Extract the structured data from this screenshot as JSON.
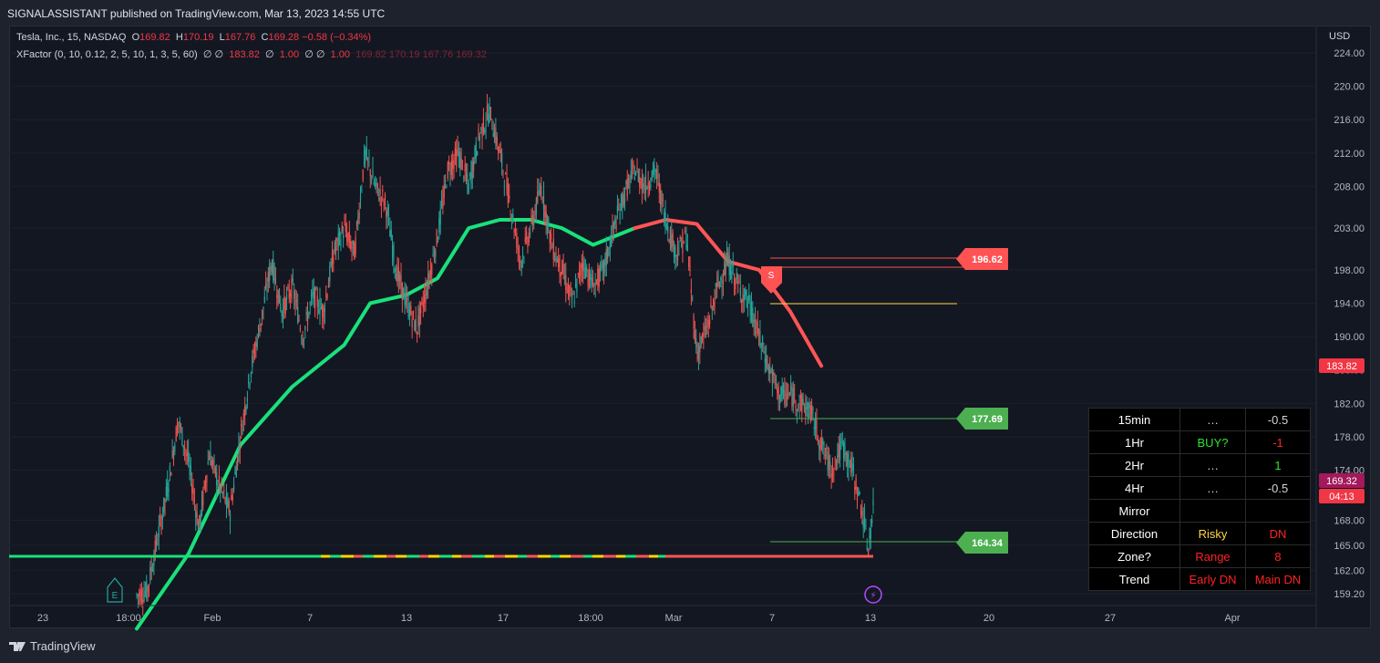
{
  "header": {
    "publisher_line": "SIGNALASSISTANT published on TradingView.com, Mar 13, 2023 14:55 UTC"
  },
  "legend": {
    "symbol": "Tesla, Inc., 15, NASDAQ",
    "open_label": "O",
    "open": "169.82",
    "high_label": "H",
    "high": "170.19",
    "low_label": "L",
    "low": "167.76",
    "close_label": "C",
    "close": "169.28",
    "change": "−0.58 (−0.34%)",
    "indicator": "XFactor (0, 10, 0.12, 2, 5, 10, 1, 3, 5, 60)",
    "ind_values_a": "∅ ∅",
    "ind_value1": "183.82",
    "ind_values_b": "∅",
    "ind_value2": "1.00",
    "ind_values_c": "∅ ∅",
    "ind_value3": "1.00",
    "ind_ohlc": "169.82 170.19 167.76 169.32"
  },
  "currency": "USD",
  "footer": {
    "brand": "TradingView"
  },
  "colors": {
    "background": "#131722",
    "up": "#26a69a",
    "down": "#ef5350",
    "ma_up": "#19e17b",
    "ma_down": "#ff5555",
    "tag_red": "#ff5252",
    "tag_green": "#4caf50",
    "price_tag": "#a3195b"
  },
  "chart_data": {
    "type": "candlestick",
    "y_axis": {
      "ticks": [
        "224.00",
        "220.00",
        "216.00",
        "212.00",
        "208.00",
        "203.00",
        "198.00",
        "194.00",
        "190.00",
        "186.00",
        "182.00",
        "178.00",
        "174.00",
        "168.00",
        "165.00",
        "162.00",
        "159.20"
      ],
      "range": [
        158.5,
        225.5
      ]
    },
    "x_axis": {
      "ticks": [
        "23",
        "18:00",
        "Feb",
        "7",
        "13",
        "17",
        "18:00",
        "Mar",
        "7",
        "13",
        "20",
        "27",
        "Apr"
      ]
    },
    "price_path": [
      [
        0,
        159
      ],
      [
        2,
        159.5
      ],
      [
        6,
        172
      ],
      [
        8,
        180
      ],
      [
        10,
        175
      ],
      [
        12,
        167
      ],
      [
        14,
        176
      ],
      [
        16,
        172
      ],
      [
        18,
        169
      ],
      [
        20,
        178
      ],
      [
        22,
        186
      ],
      [
        24,
        192
      ],
      [
        26,
        199
      ],
      [
        28,
        193
      ],
      [
        30,
        196
      ],
      [
        32,
        190
      ],
      [
        34,
        195
      ],
      [
        36,
        193
      ],
      [
        38,
        200
      ],
      [
        40,
        203
      ],
      [
        42,
        200
      ],
      [
        44,
        212
      ],
      [
        46,
        208
      ],
      [
        48,
        206
      ],
      [
        50,
        198
      ],
      [
        52,
        194
      ],
      [
        54,
        191
      ],
      [
        56,
        196
      ],
      [
        58,
        202
      ],
      [
        60,
        210
      ],
      [
        62,
        212
      ],
      [
        64,
        208
      ],
      [
        66,
        214
      ],
      [
        68,
        217
      ],
      [
        70,
        212
      ],
      [
        72,
        206
      ],
      [
        74,
        199
      ],
      [
        76,
        203
      ],
      [
        78,
        208
      ],
      [
        80,
        201
      ],
      [
        82,
        198
      ],
      [
        84,
        194
      ],
      [
        86,
        199
      ],
      [
        88,
        196
      ],
      [
        90,
        198
      ],
      [
        92,
        203
      ],
      [
        94,
        207
      ],
      [
        96,
        210
      ],
      [
        98,
        208
      ],
      [
        100,
        210
      ],
      [
        102,
        204
      ],
      [
        104,
        200
      ],
      [
        106,
        202
      ],
      [
        108,
        188
      ],
      [
        110,
        191
      ],
      [
        112,
        196
      ],
      [
        114,
        199
      ],
      [
        116,
        196
      ],
      [
        118,
        194
      ],
      [
        120,
        190
      ],
      [
        122,
        186
      ],
      [
        124,
        183
      ],
      [
        126,
        183
      ],
      [
        128,
        182
      ],
      [
        130,
        181
      ],
      [
        132,
        177
      ],
      [
        134,
        174
      ],
      [
        136,
        177
      ],
      [
        138,
        174
      ],
      [
        140,
        168.8
      ],
      [
        141,
        164.4
      ],
      [
        142,
        169.3
      ]
    ],
    "moving_average": [
      [
        0,
        155
      ],
      [
        10,
        164
      ],
      [
        20,
        177
      ],
      [
        30,
        184
      ],
      [
        40,
        189
      ],
      [
        45,
        194
      ],
      [
        52,
        195
      ],
      [
        58,
        197
      ],
      [
        64,
        203
      ],
      [
        70,
        204
      ],
      [
        76,
        204
      ],
      [
        82,
        203
      ],
      [
        88,
        201
      ],
      [
        96,
        203
      ],
      [
        102,
        204
      ],
      [
        108,
        203.5
      ],
      [
        114,
        199
      ],
      [
        120,
        198
      ],
      [
        126,
        193
      ],
      [
        132,
        186.5
      ]
    ],
    "levels": [
      {
        "price": "196.62",
        "color": "red"
      },
      {
        "price": "177.69",
        "color": "green"
      },
      {
        "price": "164.34",
        "color": "green"
      }
    ],
    "price_labels": [
      {
        "price": "183.82",
        "color": "red"
      },
      {
        "price": "169.32",
        "color": "magenta"
      },
      {
        "countdown": "04:13",
        "color": "red"
      }
    ]
  },
  "signal_table": {
    "rows": [
      {
        "label": "15min",
        "signal": "…",
        "signal_color": "#d1d4dc",
        "value": "-0.5",
        "value_color": "#d1d4dc"
      },
      {
        "label": "1Hr",
        "signal": "BUY?",
        "signal_color": "#2ee32e",
        "value": "-1",
        "value_color": "#ff2222"
      },
      {
        "label": "2Hr",
        "signal": "…",
        "signal_color": "#d1d4dc",
        "value": "1",
        "value_color": "#2ee32e"
      },
      {
        "label": "4Hr",
        "signal": "…",
        "signal_color": "#d1d4dc",
        "value": "-0.5",
        "value_color": "#d1d4dc"
      },
      {
        "label": "Mirror",
        "signal": "",
        "signal_color": "#d1d4dc",
        "value": "",
        "value_color": "#d1d4dc"
      },
      {
        "label": "Direction",
        "signal": "Risky",
        "signal_color": "#ffd54a",
        "value": "DN",
        "value_color": "#ff2222"
      },
      {
        "label": "Zone?",
        "signal": "Range",
        "signal_color": "#ff2222",
        "value": "8",
        "value_color": "#ff2222"
      },
      {
        "label": "Trend",
        "signal": "Early DN",
        "signal_color": "#ff2222",
        "value": "Main DN",
        "value_color": "#ff2222"
      }
    ]
  },
  "markers": {
    "earnings": "E",
    "signal_marker": "S",
    "lightning": "⚡"
  }
}
